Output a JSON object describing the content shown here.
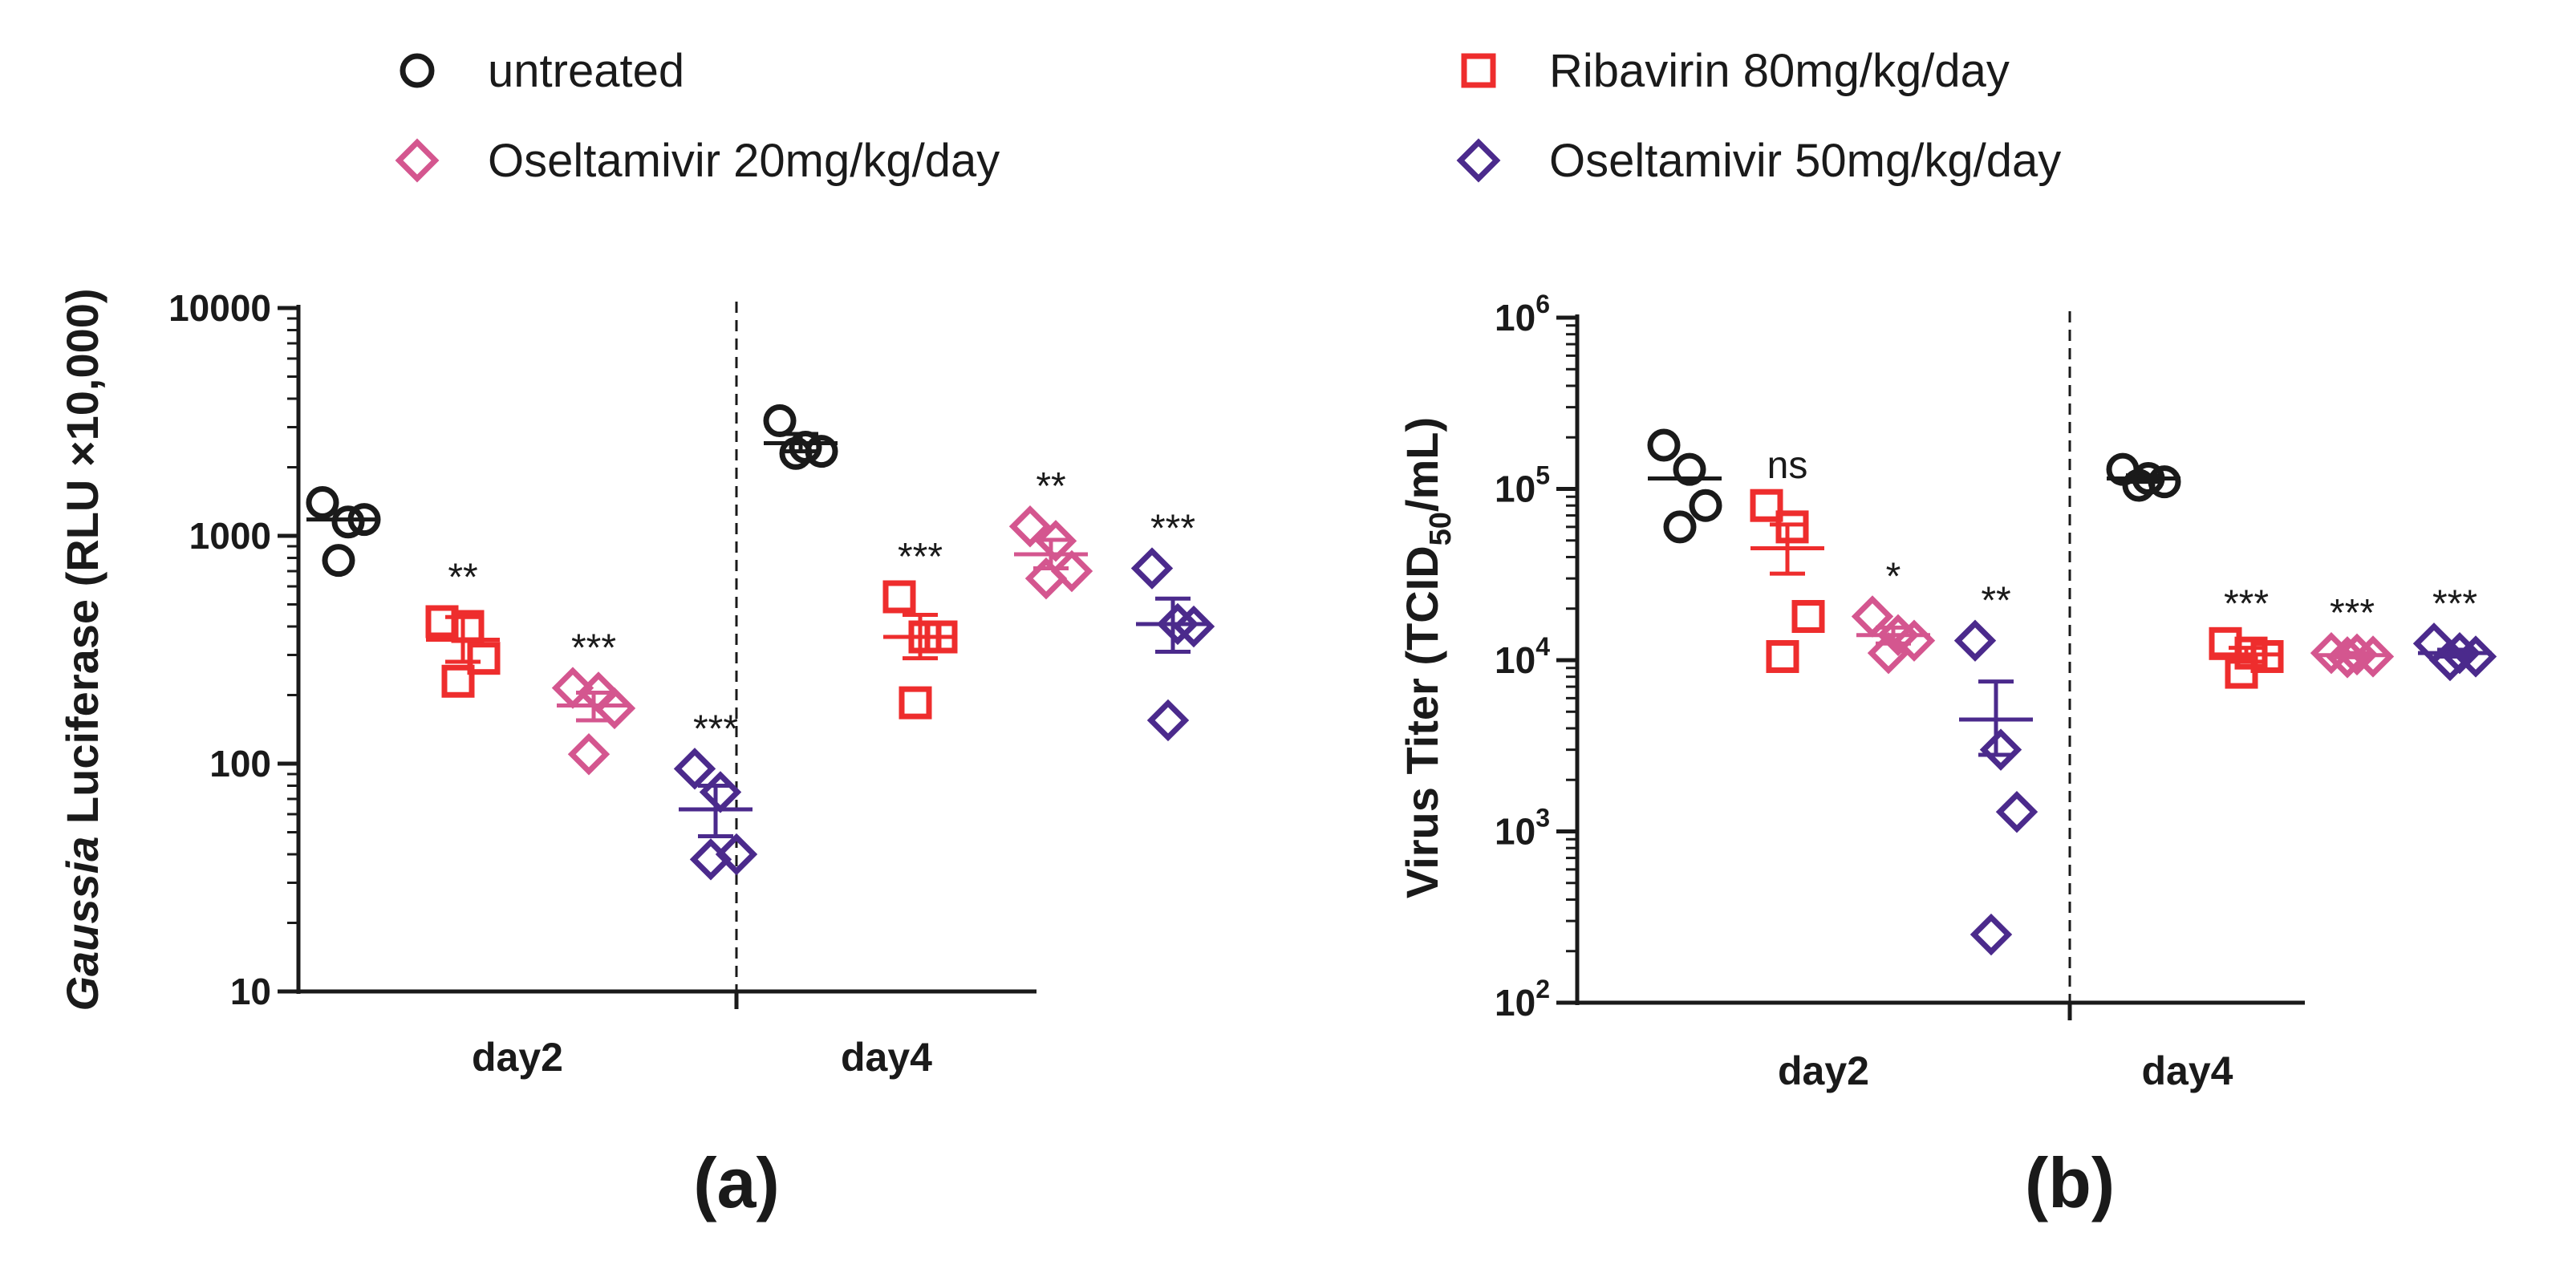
{
  "legend": [
    {
      "label": "untreated",
      "color": "#1a1a1a",
      "marker": "circle"
    },
    {
      "label": "Ribavirin 80mg/kg/day",
      "color": "#ee2d2d",
      "marker": "square"
    },
    {
      "label": "Oseltamivir 20mg/kg/day",
      "color": "#d4568f",
      "marker": "diamond"
    },
    {
      "label": "Oseltamivir 50mg/kg/day",
      "color": "#4b2a8c",
      "marker": "diamond"
    }
  ],
  "chart_data": [
    {
      "type": "scatter",
      "panel_label": "(a)",
      "ylabel_italic": "Gaussia",
      "ylabel_rest": " Luciferase (RLU ×10,000)",
      "yscale": "log",
      "ylim": [
        10,
        10000
      ],
      "yticks": [
        {
          "value": 10,
          "label": "10"
        },
        {
          "value": 100,
          "label": "100"
        },
        {
          "value": 1000,
          "label": "1000"
        },
        {
          "value": 10000,
          "label": "10000"
        }
      ],
      "categories": [
        "day2",
        "day4"
      ],
      "series": [
        {
          "name": "untreated",
          "day2": {
            "points": [
              1400,
              1150,
              1180,
              780
            ],
            "mean": 1180,
            "sem_hi": 1180,
            "sem_lo": 1180
          },
          "day4": {
            "points": [
              3200,
              2450,
              2350,
              2300
            ],
            "mean": 2550,
            "sem_hi": 2800,
            "sem_lo": 2350
          }
        },
        {
          "name": "Ribavirin 80mg/kg/day",
          "day2": {
            "points": [
              420,
              400,
              290,
              230
            ],
            "mean": 350,
            "sem_hi": 440,
            "sem_lo": 280
          },
          "day4": {
            "points": [
              540,
              360,
              360,
              185
            ],
            "mean": 360,
            "sem_hi": 450,
            "sem_lo": 290
          },
          "sig": {
            "day2": "**",
            "day4": "***"
          }
        },
        {
          "name": "Oseltamivir 20mg/kg/day",
          "day2": {
            "points": [
              215,
              205,
              175,
              110
            ],
            "mean": 180,
            "sem_hi": 205,
            "sem_lo": 155
          },
          "day4": {
            "points": [
              1100,
              950,
              700,
              650
            ],
            "mean": 830,
            "sem_hi": 960,
            "sem_lo": 720
          },
          "sig": {
            "day2": "***",
            "day4": "**"
          }
        },
        {
          "name": "Oseltamivir 50mg/kg/day",
          "day2": {
            "points": [
              95,
              75,
              40,
              38
            ],
            "mean": 63,
            "sem_hi": 80,
            "sem_lo": 48
          },
          "day4": {
            "points": [
              720,
              410,
              400,
              155
            ],
            "mean": 410,
            "sem_hi": 530,
            "sem_lo": 310
          },
          "sig": {
            "day2": "***",
            "day4": "***"
          }
        }
      ]
    },
    {
      "type": "scatter",
      "panel_label": "(b)",
      "ylabel_pre": "Virus Titer (TCID",
      "ylabel_sub": "50",
      "ylabel_post": "/mL)",
      "yscale": "log",
      "ylim": [
        100,
        1000000
      ],
      "yticks": [
        {
          "value": 100,
          "base": "10",
          "exp": "2"
        },
        {
          "value": 1000,
          "base": "10",
          "exp": "3"
        },
        {
          "value": 10000,
          "base": "10",
          "exp": "4"
        },
        {
          "value": 100000,
          "base": "10",
          "exp": "5"
        },
        {
          "value": 1000000,
          "base": "10",
          "exp": "6"
        }
      ],
      "categories": [
        "day2",
        "day4"
      ],
      "series": [
        {
          "name": "untreated",
          "day2": {
            "points": [
              180000,
              130000,
              80000,
              60000
            ],
            "mean": 115000,
            "sem_hi": 115000,
            "sem_lo": 115000
          },
          "day4": {
            "points": [
              130000,
              115000,
              110000,
              105000
            ],
            "mean": 115000,
            "sem_hi": 120000,
            "sem_lo": 110000
          }
        },
        {
          "name": "Ribavirin 80mg/kg/day",
          "day2": {
            "points": [
              80000,
              60000,
              18000,
              10500
            ],
            "mean": 45000,
            "sem_hi": 62000,
            "sem_lo": 32000
          },
          "day4": {
            "points": [
              12500,
              11000,
              10500,
              8500
            ],
            "mean": 10800,
            "sem_hi": 11800,
            "sem_lo": 9800
          },
          "sig": {
            "day2": "ns",
            "day4": "***"
          }
        },
        {
          "name": "Oseltamivir 20mg/kg/day",
          "day2": {
            "points": [
              18000,
              14000,
              13000,
              11000
            ],
            "mean": 14000,
            "sem_hi": 15500,
            "sem_lo": 12500
          },
          "day4": {
            "points": [
              11000,
              10800,
              10500,
              10400
            ],
            "mean": 10700,
            "sem_hi": 11000,
            "sem_lo": 10400
          },
          "sig": {
            "day2": "*",
            "day4": "***"
          }
        },
        {
          "name": "Oseltamivir 50mg/kg/day",
          "day2": {
            "points": [
              13000,
              3000,
              1300,
              250
            ],
            "mean": 4500,
            "sem_hi": 7500,
            "sem_lo": 2800
          },
          "day4": {
            "points": [
              12500,
              11000,
              10500,
              10000
            ],
            "mean": 11000,
            "sem_hi": 11500,
            "sem_lo": 10500
          },
          "sig": {
            "day2": "**",
            "day4": "***"
          }
        }
      ]
    }
  ]
}
